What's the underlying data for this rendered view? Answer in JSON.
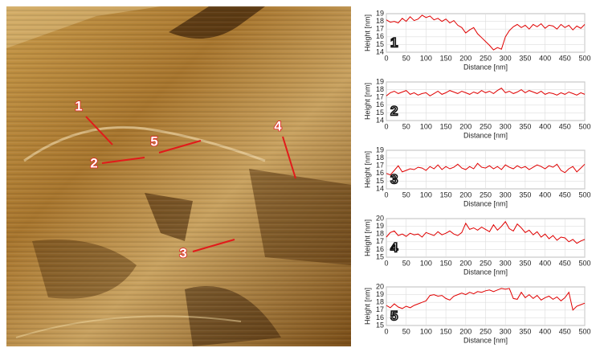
{
  "image": {
    "labels": [
      "1",
      "2",
      "5",
      "4",
      "3"
    ]
  },
  "chart_data": [
    {
      "type": "line",
      "annotation": "1",
      "xlabel": "Distance [nm]",
      "ylabel": "Height [nm]",
      "x": [
        0,
        10,
        20,
        30,
        40,
        50,
        60,
        70,
        80,
        90,
        100,
        110,
        120,
        130,
        140,
        150,
        160,
        170,
        180,
        190,
        200,
        210,
        220,
        230,
        240,
        250,
        260,
        270,
        280,
        290,
        300,
        310,
        320,
        330,
        340,
        350,
        360,
        370,
        380,
        390,
        400,
        410,
        420,
        430,
        440,
        450,
        460,
        470,
        480,
        490,
        500
      ],
      "values": [
        18.2,
        17.9,
        18.0,
        17.8,
        18.4,
        18.0,
        18.6,
        18.1,
        18.3,
        18.8,
        18.5,
        18.7,
        18.2,
        18.4,
        18.0,
        18.3,
        17.8,
        18.1,
        17.5,
        17.2,
        16.5,
        16.9,
        17.2,
        16.4,
        15.9,
        15.4,
        14.9,
        14.3,
        14.6,
        14.4,
        16.0,
        16.8,
        17.3,
        17.6,
        17.2,
        17.5,
        17.0,
        17.6,
        17.3,
        17.7,
        17.1,
        17.5,
        17.4,
        17.0,
        17.6,
        17.2,
        17.5,
        16.9,
        17.4,
        17.1,
        17.6
      ],
      "color": "#e00000",
      "xlim": [
        0,
        500
      ],
      "ylim": [
        14,
        19
      ],
      "xticks": [
        0,
        50,
        100,
        150,
        200,
        250,
        300,
        350,
        400,
        450,
        500
      ],
      "yticks": [
        14,
        15,
        16,
        17,
        18,
        19
      ],
      "grid": true
    },
    {
      "type": "line",
      "annotation": "2",
      "xlabel": "Distance [nm]",
      "ylabel": "Height [nm]",
      "x": [
        0,
        10,
        20,
        30,
        40,
        50,
        60,
        70,
        80,
        90,
        100,
        110,
        120,
        130,
        140,
        150,
        160,
        170,
        180,
        190,
        200,
        210,
        220,
        230,
        240,
        250,
        260,
        270,
        280,
        290,
        300,
        310,
        320,
        330,
        340,
        350,
        360,
        370,
        380,
        390,
        400,
        410,
        420,
        430,
        440,
        450,
        460,
        470,
        480,
        490,
        500
      ],
      "values": [
        17.2,
        17.6,
        17.8,
        17.5,
        17.7,
        17.9,
        17.4,
        17.6,
        17.3,
        17.5,
        17.6,
        17.2,
        17.5,
        17.8,
        17.4,
        17.6,
        17.9,
        17.7,
        17.5,
        17.8,
        17.6,
        17.4,
        17.7,
        17.5,
        17.9,
        17.6,
        17.8,
        17.5,
        17.9,
        18.2,
        17.6,
        17.8,
        17.5,
        17.7,
        18.0,
        17.6,
        17.9,
        17.7,
        17.5,
        17.8,
        17.4,
        17.6,
        17.5,
        17.3,
        17.6,
        17.4,
        17.7,
        17.5,
        17.3,
        17.6,
        17.4
      ],
      "color": "#e00000",
      "xlim": [
        0,
        500
      ],
      "ylim": [
        14,
        19
      ],
      "xticks": [
        0,
        50,
        100,
        150,
        200,
        250,
        300,
        350,
        400,
        450,
        500
      ],
      "yticks": [
        14,
        15,
        16,
        17,
        18,
        19
      ],
      "grid": true
    },
    {
      "type": "line",
      "annotation": "3",
      "xlabel": "Distance [nm]",
      "ylabel": "Height [nm]",
      "x": [
        0,
        10,
        20,
        30,
        40,
        50,
        60,
        70,
        80,
        90,
        100,
        110,
        120,
        130,
        140,
        150,
        160,
        170,
        180,
        190,
        200,
        210,
        220,
        230,
        240,
        250,
        260,
        270,
        280,
        290,
        300,
        310,
        320,
        330,
        340,
        350,
        360,
        370,
        380,
        390,
        400,
        410,
        420,
        430,
        440,
        450,
        460,
        470,
        480,
        490,
        500
      ],
      "values": [
        16.0,
        15.8,
        16.4,
        17.0,
        16.2,
        16.4,
        16.6,
        16.5,
        16.8,
        16.7,
        16.4,
        16.9,
        16.6,
        17.1,
        16.5,
        16.9,
        16.6,
        16.8,
        17.2,
        16.7,
        16.5,
        16.9,
        16.6,
        17.3,
        16.8,
        16.7,
        17.0,
        16.6,
        16.9,
        16.5,
        17.1,
        16.8,
        16.6,
        17.0,
        16.7,
        16.9,
        16.5,
        16.8,
        17.1,
        16.9,
        16.6,
        17.0,
        16.8,
        17.2,
        16.4,
        16.1,
        16.6,
        16.9,
        16.2,
        16.7,
        17.2
      ],
      "color": "#e00000",
      "xlim": [
        0,
        500
      ],
      "ylim": [
        14,
        19
      ],
      "xticks": [
        0,
        50,
        100,
        150,
        200,
        250,
        300,
        350,
        400,
        450,
        500
      ],
      "yticks": [
        14,
        15,
        16,
        17,
        18,
        19
      ],
      "grid": true
    },
    {
      "type": "line",
      "annotation": "4",
      "xlabel": "Distance [nm]",
      "ylabel": "Height [nm]",
      "x": [
        0,
        10,
        20,
        30,
        40,
        50,
        60,
        70,
        80,
        90,
        100,
        110,
        120,
        130,
        140,
        150,
        160,
        170,
        180,
        190,
        200,
        210,
        220,
        230,
        240,
        250,
        260,
        270,
        280,
        290,
        300,
        310,
        320,
        330,
        340,
        350,
        360,
        370,
        380,
        390,
        400,
        410,
        420,
        430,
        440,
        450,
        460,
        470,
        480,
        490,
        500
      ],
      "values": [
        17.6,
        18.2,
        18.4,
        17.8,
        18.0,
        17.7,
        18.1,
        17.9,
        18.0,
        17.6,
        18.2,
        18.0,
        17.8,
        18.3,
        17.9,
        18.1,
        18.4,
        18.0,
        17.8,
        18.2,
        19.4,
        18.6,
        18.8,
        18.5,
        18.9,
        18.6,
        18.3,
        19.2,
        18.5,
        19.0,
        19.6,
        18.7,
        18.4,
        19.3,
        18.8,
        18.2,
        18.5,
        17.9,
        18.3,
        17.6,
        18.0,
        17.4,
        17.8,
        17.2,
        17.6,
        17.5,
        17.0,
        17.3,
        16.8,
        17.1,
        17.3
      ],
      "color": "#e00000",
      "xlim": [
        0,
        500
      ],
      "ylim": [
        15,
        20
      ],
      "xticks": [
        0,
        50,
        100,
        150,
        200,
        250,
        300,
        350,
        400,
        450,
        500
      ],
      "yticks": [
        15,
        16,
        17,
        18,
        19,
        20
      ],
      "grid": true
    },
    {
      "type": "line",
      "annotation": "5",
      "xlabel": "Distance [nm]",
      "ylabel": "Height [nm]",
      "x": [
        0,
        10,
        20,
        30,
        40,
        50,
        60,
        70,
        80,
        90,
        100,
        110,
        120,
        130,
        140,
        150,
        160,
        170,
        180,
        190,
        200,
        210,
        220,
        230,
        240,
        250,
        260,
        270,
        280,
        290,
        300,
        310,
        320,
        330,
        340,
        350,
        360,
        370,
        380,
        390,
        400,
        410,
        420,
        430,
        440,
        450,
        460,
        470,
        480,
        490,
        500
      ],
      "values": [
        17.6,
        17.3,
        17.8,
        17.4,
        17.2,
        17.5,
        17.3,
        17.6,
        17.8,
        18.0,
        18.2,
        18.9,
        19.0,
        18.8,
        18.9,
        18.5,
        18.3,
        18.8,
        19.0,
        19.2,
        19.0,
        19.3,
        19.1,
        19.4,
        19.3,
        19.5,
        19.6,
        19.4,
        19.6,
        19.8,
        19.7,
        19.8,
        18.5,
        18.4,
        19.3,
        18.6,
        19.0,
        18.5,
        18.9,
        18.3,
        18.6,
        18.8,
        18.4,
        18.7,
        18.2,
        18.6,
        19.3,
        17.0,
        17.5,
        17.7,
        17.9
      ],
      "color": "#e00000",
      "xlim": [
        0,
        500
      ],
      "ylim": [
        15,
        20
      ],
      "xticks": [
        0,
        50,
        100,
        150,
        200,
        250,
        300,
        350,
        400,
        450,
        500
      ],
      "yticks": [
        15,
        16,
        17,
        18,
        19,
        20
      ],
      "grid": true
    }
  ]
}
